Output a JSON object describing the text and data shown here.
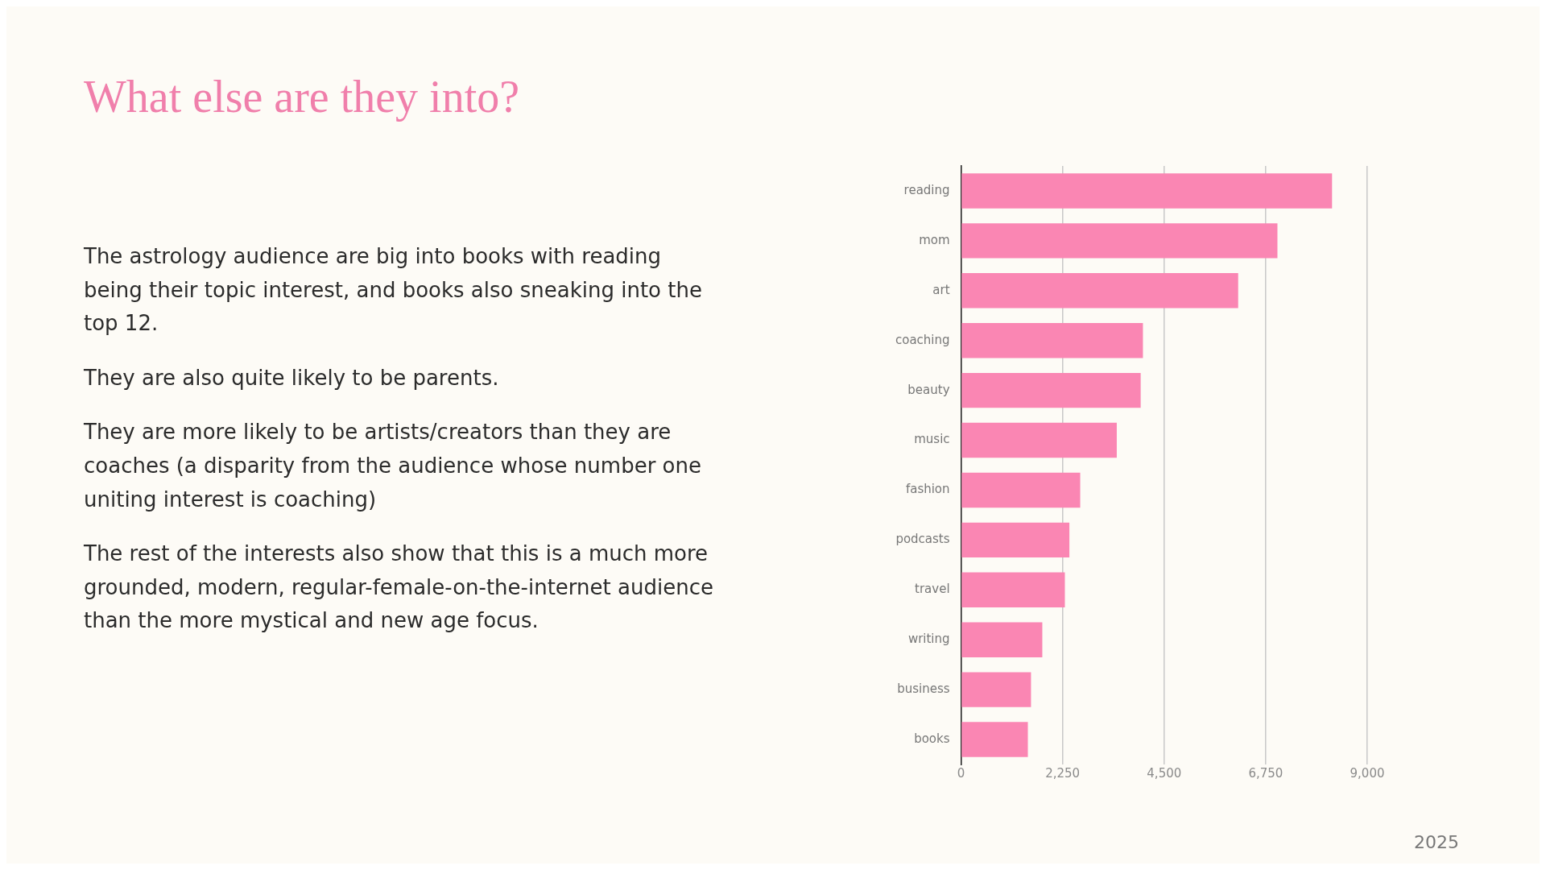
{
  "chart_data": {
    "type": "bar",
    "orientation": "horizontal",
    "title": "What else are they into?",
    "categories": [
      "reading",
      "mom",
      "art",
      "coaching",
      "beauty",
      "music",
      "fashion",
      "podcasts",
      "travel",
      "writing",
      "business",
      "books"
    ],
    "values": [
      8220,
      7010,
      6140,
      4030,
      3980,
      3450,
      2640,
      2400,
      2300,
      1800,
      1550,
      1480
    ],
    "color": "#fa86b3",
    "xlim": [
      0,
      9000
    ],
    "xticks": [
      {
        "value": 0,
        "label": "0"
      },
      {
        "value": 2250,
        "label": "2,250"
      },
      {
        "value": 4500,
        "label": "4,500"
      },
      {
        "value": 6750,
        "label": "6,750"
      },
      {
        "value": 9000,
        "label": "9,000"
      }
    ],
    "grid": "x",
    "legend": false,
    "annotations": [
      "The astrology audience are big into books with reading being their topic interest, and books also sneaking into the top 12.",
      "They are also quite likely to be parents.",
      "They are more likely to be artists/creators than they are coaches (a disparity from the audience whose number one uniting interest is coaching)",
      "The rest of the interests also show that this is a much more grounded, modern, regular-female-on-the-internet audience than the more mystical and new age focus.",
      "2025"
    ]
  }
}
